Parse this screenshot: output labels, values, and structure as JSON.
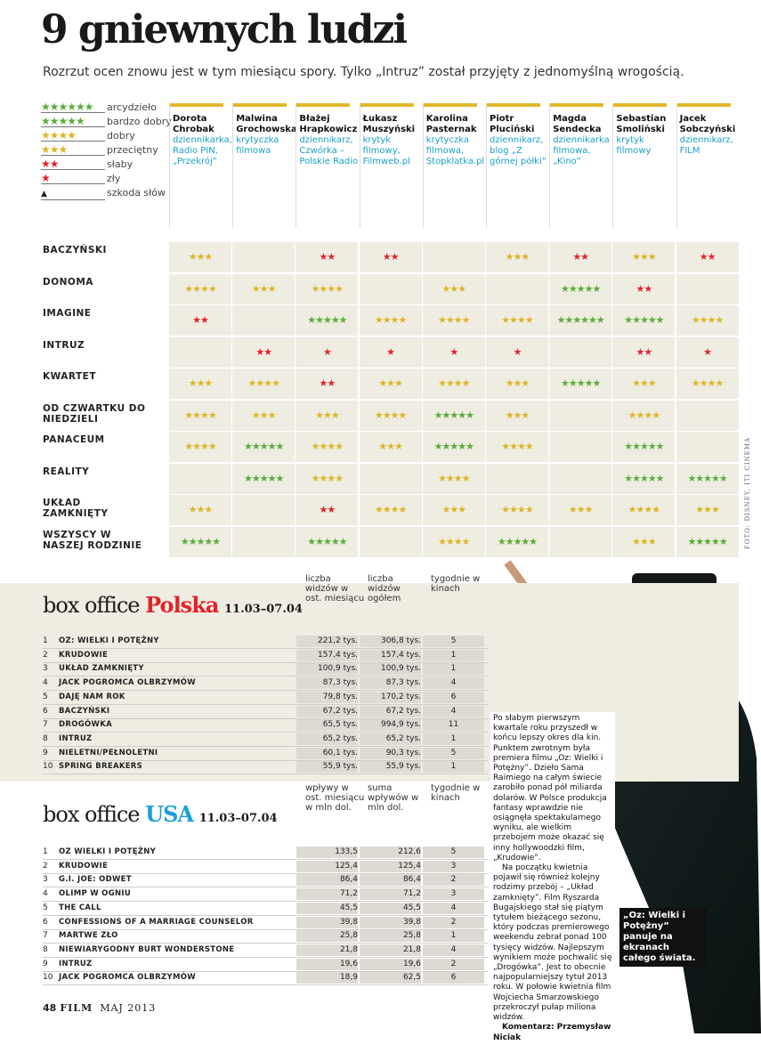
{
  "title": "9 gniewnych ludzi",
  "subtitle": "Rozrzut ocen znowu jest w tym miesiącu spory. Tylko „Intruz” został przyjęty z jednomyślną wrogością.",
  "legend": [
    {
      "stars": 6,
      "label": "arcydzieło"
    },
    {
      "stars": 5,
      "label": "bardzo dobry"
    },
    {
      "stars": 4,
      "label": "dobry"
    },
    {
      "stars": 3,
      "label": "przeciętny"
    },
    {
      "stars": 2,
      "label": "słaby"
    },
    {
      "stars": 1,
      "label": "zły"
    },
    {
      "stars": 0,
      "label": "szkoda słów"
    }
  ],
  "critics": [
    {
      "name": "Dorota Chrobak",
      "description": "dziennikarka, Radio PIN, „Przekrój”"
    },
    {
      "name": "Malwina Grochowska",
      "description": "krytyczka filmowa"
    },
    {
      "name": "Błażej Hrapkowicz",
      "description": "dziennikarz, Czwórka – Polskie Radio"
    },
    {
      "name": "Łukasz Muszyński",
      "description": "krytyk filmowy, Filmweb.pl"
    },
    {
      "name": "Karolina Pasternak",
      "description": "krytyczka filmowa, Stopklatka.pl"
    },
    {
      "name": "Piotr Pluciński",
      "description": "dziennikarz, blog „Z górnej półki”"
    },
    {
      "name": "Magda Sendecka",
      "description": "dziennikarka filmowa, „Kino”"
    },
    {
      "name": "Sebastian Smoliński",
      "description": "krytyk filmowy"
    },
    {
      "name": "Jacek Sobczyński",
      "description": "dziennikarz, FILM"
    }
  ],
  "ratings": {
    "films": [
      "BACZYŃSKI",
      "DONOMA",
      "IMAGINE",
      "INTRUZ",
      "KWARTET",
      "OD CZWARTKU DO NIEDZIELI",
      "PANACEUM",
      "REALITY",
      "UKŁAD ZAMKNIĘTY",
      "WSZYSCY W NASZEJ RODZINIE"
    ],
    "rows": [
      [
        3,
        null,
        2,
        2,
        null,
        3,
        2,
        3,
        2
      ],
      [
        4,
        3,
        4,
        null,
        3,
        null,
        5,
        2,
        null
      ],
      [
        2,
        null,
        5,
        4,
        4,
        4,
        6,
        5,
        4
      ],
      [
        null,
        2,
        1,
        1,
        1,
        1,
        null,
        2,
        1
      ],
      [
        3,
        4,
        2,
        3,
        4,
        3,
        5,
        3,
        4
      ],
      [
        4,
        3,
        3,
        4,
        5,
        3,
        null,
        4,
        null
      ],
      [
        4,
        5,
        4,
        3,
        5,
        4,
        null,
        5,
        null
      ],
      [
        null,
        5,
        4,
        null,
        4,
        null,
        null,
        5,
        5
      ],
      [
        3,
        null,
        2,
        4,
        3,
        4,
        3,
        4,
        3
      ],
      [
        5,
        null,
        5,
        null,
        4,
        5,
        null,
        3,
        5
      ]
    ]
  },
  "box_office_pl": {
    "label": "box office",
    "country": "Polska",
    "dates": "11.03–07.04",
    "columns": [
      "liczba widzów w ost. miesiącu",
      "liczba widzów ogółem",
      "tygodnie w kinach"
    ],
    "rows": [
      [
        1,
        "OZ: WIELKI I POTĘŻNY",
        "221,2 tys.",
        "306,8 tys.",
        5
      ],
      [
        2,
        "KRUDOWIE",
        "157,4 tys.",
        "157,4 tys.",
        1
      ],
      [
        3,
        "UKŁAD ZAMKNIĘTY",
        "100,9 tys.",
        "100,9 tys.",
        1
      ],
      [
        4,
        "JACK POGROMCA OLBRZYMÓW",
        "87,3 tys.",
        "87,3 tys.",
        4
      ],
      [
        5,
        "DAJĘ NAM ROK",
        "79,8 tys.",
        "170,2 tys.",
        6
      ],
      [
        6,
        "BACZYŃSKI",
        "67,2 tys.",
        "67,2 tys.",
        4
      ],
      [
        7,
        "DROGÓWKA",
        "65,5 tys.",
        "994,9 tys.",
        11
      ],
      [
        8,
        "INTRUZ",
        "65,2 tys.",
        "65,2 tys.",
        1
      ],
      [
        9,
        "NIELETNI/PEŁNOLETNI",
        "60,1 tys.",
        "90,3 tys.",
        5
      ],
      [
        10,
        "SPRING BREAKERS",
        "55,9 tys.",
        "55,9 tys.",
        1
      ]
    ]
  },
  "box_office_usa": {
    "label": "box office",
    "country": "USA",
    "dates": "11.03–07.04",
    "columns": [
      "wpływy w ost. miesiącu w mln dol.",
      "suma wpływów w mln dol.",
      "tygodnie w kinach"
    ],
    "rows": [
      [
        1,
        "OZ WIELKI I POTĘŻNY",
        "133,5",
        "212,6",
        5
      ],
      [
        2,
        "KRUDOWIE",
        "125,4",
        "125,4",
        3
      ],
      [
        3,
        "G.I. JOE: ODWET",
        "86,4",
        "86,4",
        2
      ],
      [
        4,
        "OLIMP W OGNIU",
        "71,2",
        "71,2",
        3
      ],
      [
        5,
        "THE CALL",
        "45,5",
        "45,5",
        4
      ],
      [
        6,
        "CONFESSIONS OF A MARRIAGE COUNSELOR",
        "39,8",
        "39,8",
        2
      ],
      [
        7,
        "MARTWE ZŁO",
        "25,8",
        "25,8",
        1
      ],
      [
        8,
        "NIEWIARYGODNY BURT WONDERSTONE",
        "21,8",
        "21,8",
        4
      ],
      [
        9,
        "INTRUZ",
        "19,6",
        "19,6",
        2
      ],
      [
        10,
        "JACK POGROMCA OLBRZYMÓW",
        "18,9",
        "62,5",
        6
      ]
    ]
  },
  "article": {
    "paragraphs": [
      "Po słabym pierwszym kwartale roku przyszedł w końcu lepszy okres dla kin. Punktem zwrotnym była premiera filmu „Oz: Wielki i Potężny”. Dzieło Sama Raimiego na całym świecie zarobiło ponad pół miliarda dolarów. W Polsce produkcja fantasy wprawdzie nie osiągnęła spektakularnego wyniku, ale wielkim przebojem może okazać się inny hollywoodzki film, „Krudowie”.",
      "Na początku kwietnia pojawił się również kolejny rodzimy przebój – „Układ zamknięty”. Film Ryszarda Bugajskiego stał się piątym tytułem bieżącego sezonu, który podczas premierowego weekendu zebrał ponad 100 tysięcy widzów. Najlepszym wynikiem może pochwalić się „Drogówka”. Jest to obecnie najpopularniejszy tytuł 2013 roku. W połowie kwietnia film Wojciecha Smarzowskiego przekroczył pułap miliona widzów."
    ],
    "author": "Komentarz: Przemysław Niciak"
  },
  "caption": "„Oz: Wielki i Potężny” panuje na ekranach całego świata.",
  "photo_credit": "FOTO: DISNEY, ITI CINEMA",
  "footer": {
    "page": "48",
    "magazine": "FILM",
    "issue": "MAJ 2013"
  }
}
